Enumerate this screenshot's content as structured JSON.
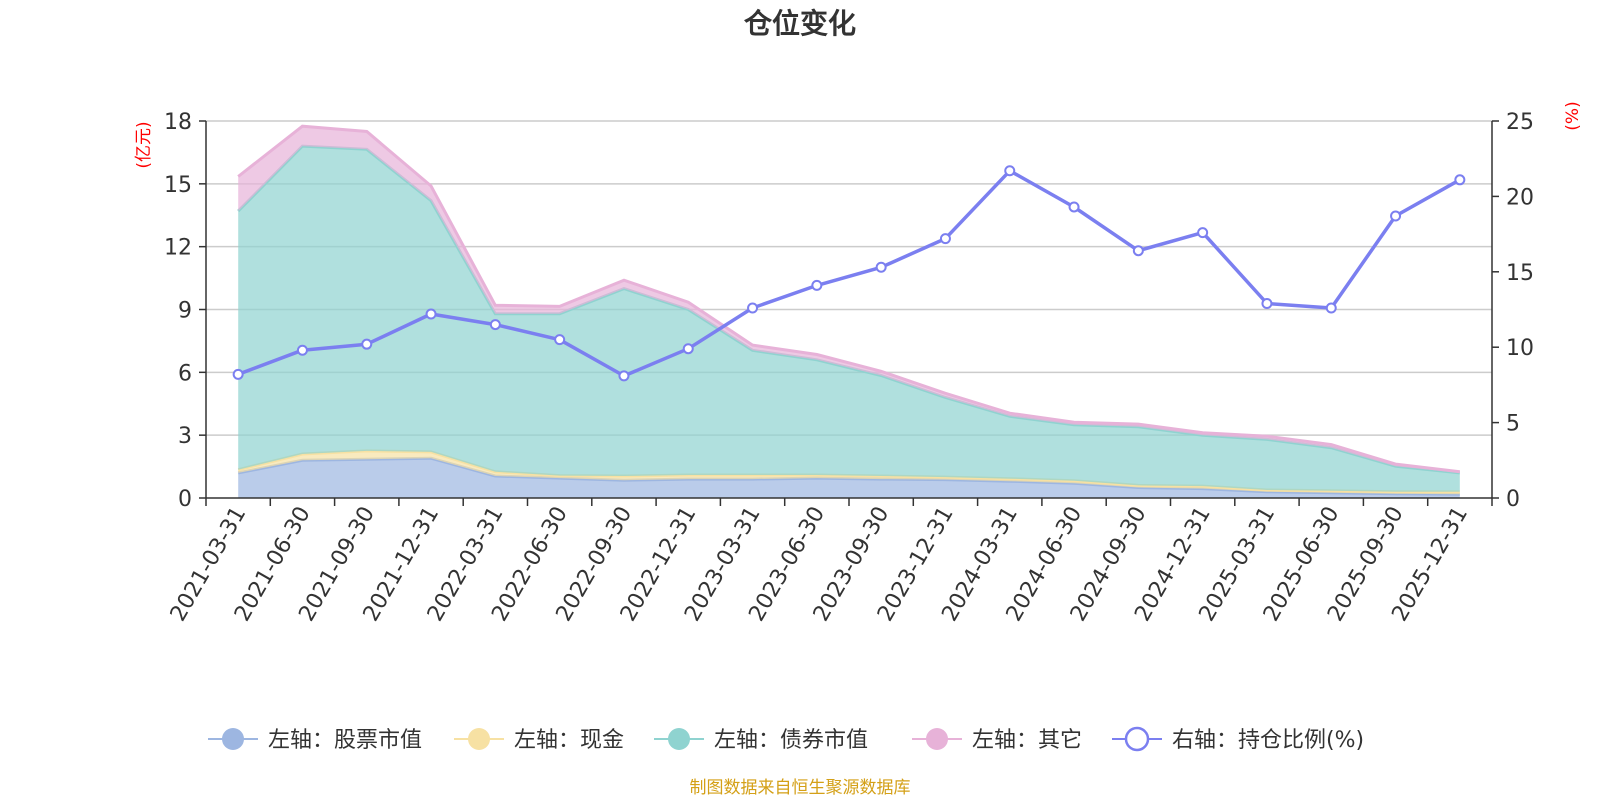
{
  "chart_data": {
    "type": "area",
    "title": "仓位变化",
    "categories": [
      "2021-03-31",
      "2021-06-30",
      "2021-09-30",
      "2021-12-31",
      "2022-03-31",
      "2022-06-30",
      "2022-09-30",
      "2022-12-31",
      "2023-03-31",
      "2023-06-30",
      "2023-09-30",
      "2023-12-31",
      "2024-03-31",
      "2024-06-30",
      "2024-09-30",
      "2024-12-31",
      "2025-03-31",
      "2025-06-30",
      "2025-09-30",
      "2025-12-31"
    ],
    "left_axis": {
      "unit_label": "(亿元)",
      "ylim": [
        0,
        18
      ],
      "ticks": [
        "0",
        "3",
        "6",
        "9",
        "12",
        "15",
        "18"
      ]
    },
    "right_axis": {
      "unit_label": "(%)",
      "ylim": [
        0,
        25
      ],
      "ticks": [
        "0",
        "5",
        "10",
        "15",
        "20",
        "25"
      ]
    },
    "stacked_series": [
      {
        "name": "左轴：股票市值",
        "color": "#9db6e1",
        "values": [
          1.2,
          1.8,
          1.85,
          1.9,
          1.05,
          0.95,
          0.85,
          0.9,
          0.9,
          0.95,
          0.9,
          0.88,
          0.8,
          0.7,
          0.5,
          0.45,
          0.3,
          0.25,
          0.2,
          0.18
        ]
      },
      {
        "name": "左轴：现金",
        "color": "#f7e1a3",
        "values": [
          0.15,
          0.3,
          0.4,
          0.3,
          0.2,
          0.12,
          0.2,
          0.2,
          0.2,
          0.15,
          0.15,
          0.12,
          0.12,
          0.12,
          0.1,
          0.12,
          0.08,
          0.1,
          0.1,
          0.12
        ]
      },
      {
        "name": "左轴：债券市值",
        "color": "#8fd3d0",
        "values": [
          12.35,
          14.7,
          14.4,
          12.0,
          7.55,
          7.73,
          8.95,
          7.9,
          5.95,
          5.5,
          4.8,
          3.8,
          2.98,
          2.68,
          2.8,
          2.43,
          2.42,
          2.05,
          1.22,
          0.9
        ]
      },
      {
        "name": "左轴：其它",
        "color": "#e7b2d8",
        "values": [
          1.65,
          0.95,
          0.85,
          0.7,
          0.4,
          0.35,
          0.4,
          0.35,
          0.25,
          0.25,
          0.2,
          0.2,
          0.15,
          0.12,
          0.13,
          0.12,
          0.15,
          0.15,
          0.1,
          0.05
        ]
      }
    ],
    "line_series": {
      "name": "右轴：持仓比例(%)",
      "color": "#7b7ff0",
      "values": [
        8.2,
        9.8,
        10.2,
        12.2,
        11.5,
        10.5,
        8.1,
        9.9,
        12.6,
        14.1,
        15.3,
        17.2,
        21.7,
        19.3,
        16.4,
        17.6,
        12.9,
        12.6,
        18.7,
        21.1
      ]
    },
    "legend_position": "bottom",
    "grid": true
  },
  "legend": [
    {
      "label": "左轴：股票市值",
      "color": "#9db6e1",
      "kind": "dot"
    },
    {
      "label": "左轴：现金",
      "color": "#f7e1a3",
      "kind": "dot"
    },
    {
      "label": "左轴：债券市值",
      "color": "#8fd3d0",
      "kind": "dot"
    },
    {
      "label": "左轴：其它",
      "color": "#e7b2d8",
      "kind": "dot"
    },
    {
      "label": "右轴：持仓比例(%)",
      "color": "#7b7ff0",
      "kind": "ring"
    }
  ],
  "source": {
    "text": "制图数据来自恒生聚源数据库",
    "color": "#d4a017"
  }
}
